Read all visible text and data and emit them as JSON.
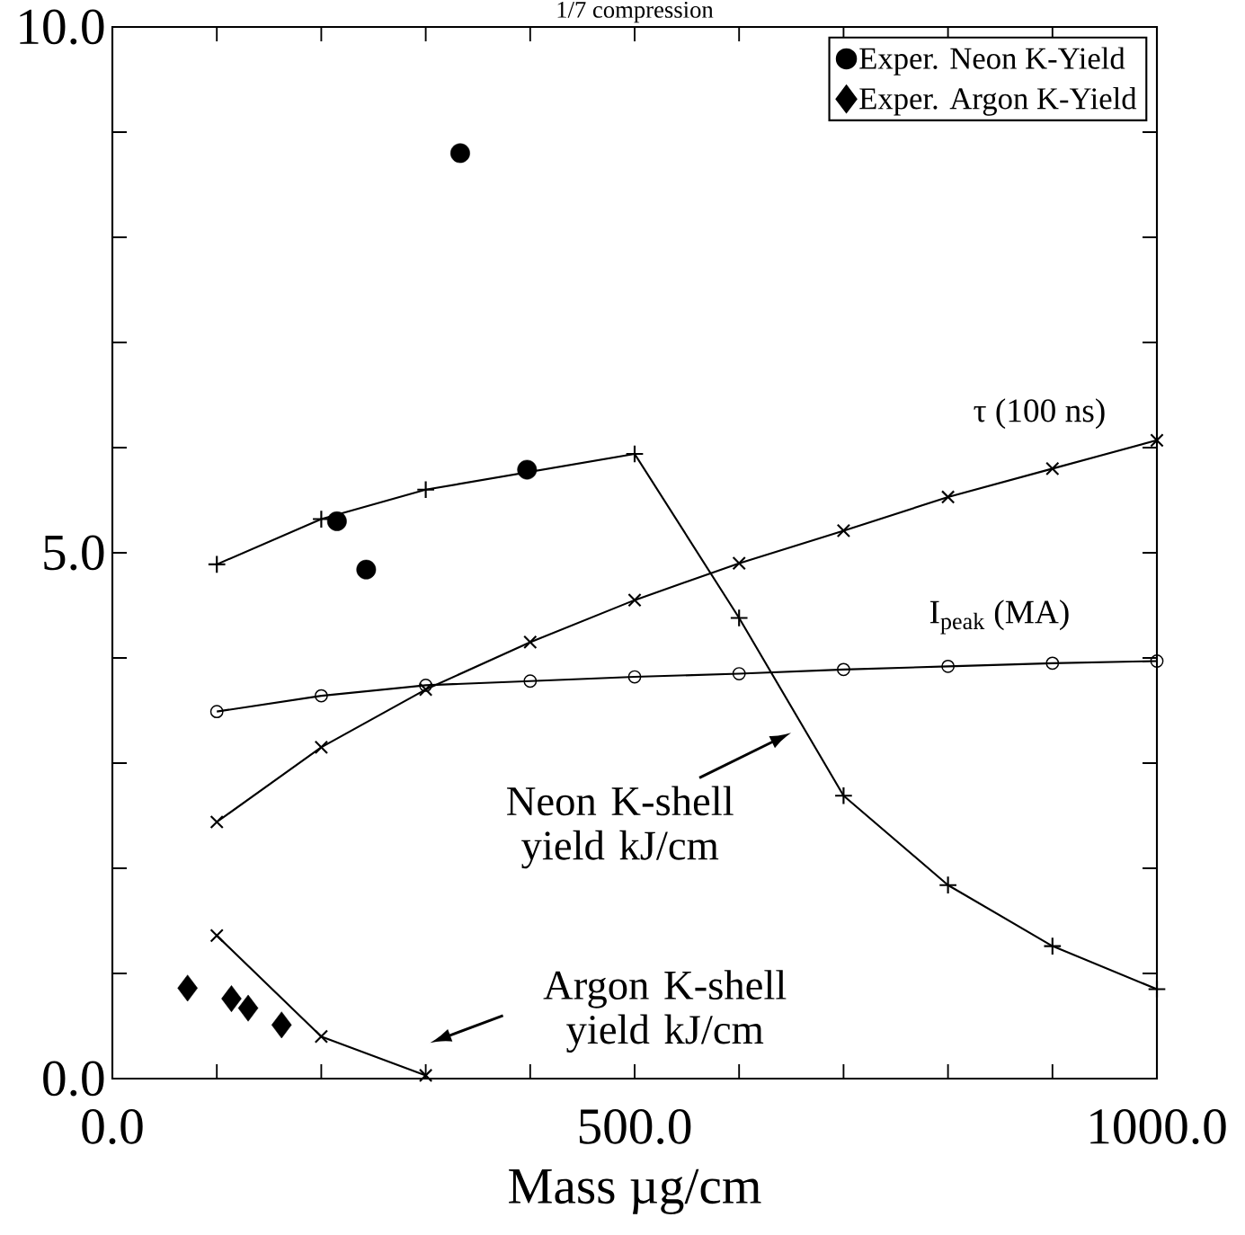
{
  "chart_data": {
    "type": "line",
    "title": "1/7 compression",
    "xlabel": "Mass µg/cm",
    "xlim": [
      0,
      1000
    ],
    "ylim": [
      0,
      10
    ],
    "xticks": [
      {
        "value": 0,
        "label": "0.0"
      },
      {
        "value": 100,
        "label": null
      },
      {
        "value": 200,
        "label": null
      },
      {
        "value": 300,
        "label": null
      },
      {
        "value": 400,
        "label": null
      },
      {
        "value": 500,
        "label": "500.0"
      },
      {
        "value": 600,
        "label": null
      },
      {
        "value": 700,
        "label": null
      },
      {
        "value": 800,
        "label": null
      },
      {
        "value": 900,
        "label": null
      },
      {
        "value": 1000,
        "label": "1000.0"
      }
    ],
    "yticks": [
      {
        "value": 0,
        "label": "0.0"
      },
      {
        "value": 1,
        "label": null
      },
      {
        "value": 2,
        "label": null
      },
      {
        "value": 3,
        "label": null
      },
      {
        "value": 4,
        "label": null
      },
      {
        "value": 5,
        "label": "5.0"
      },
      {
        "value": 6,
        "label": null
      },
      {
        "value": 7,
        "label": null
      },
      {
        "value": 8,
        "label": null
      },
      {
        "value": 9,
        "label": null
      },
      {
        "value": 10,
        "label": "10.0"
      }
    ],
    "legend": "top right",
    "series": [
      {
        "type": "line",
        "marker": "plus",
        "color": "#000000",
        "x": [
          100,
          200,
          300,
          400,
          500,
          600,
          700,
          800,
          900,
          1000
        ],
        "values": [
          4.89,
          5.32,
          5.6,
          null,
          5.94,
          4.38,
          2.69,
          1.84,
          1.26,
          0.85
        ]
      },
      {
        "type": "line",
        "marker": "cross",
        "name": "τ (100 ns)",
        "color": "#000000",
        "x": [
          100,
          200,
          300,
          400,
          500,
          600,
          700,
          800,
          900,
          1000
        ],
        "values": [
          2.44,
          3.15,
          3.7,
          4.15,
          4.55,
          4.9,
          5.21,
          5.53,
          5.8,
          6.07
        ]
      },
      {
        "type": "line",
        "marker": "circle",
        "name": "I$_{peak}$ (MA)",
        "color": "#000000",
        "x": [
          100,
          200,
          300,
          400,
          500,
          600,
          700,
          800,
          900,
          1000
        ],
        "values": [
          3.49,
          3.64,
          3.74,
          3.78,
          3.82,
          3.85,
          3.89,
          3.92,
          3.95,
          3.97
        ]
      },
      {
        "type": "line",
        "marker": "cross",
        "color": "#000000",
        "x": [
          100,
          200,
          300
        ],
        "values": [
          1.36,
          0.4,
          0.03
        ]
      },
      {
        "type": "scatter",
        "marker": "circle",
        "name": "Exper. Neon K-Yield",
        "color": "#000000",
        "x": [
          333,
          215,
          243,
          397
        ],
        "values": [
          8.8,
          5.3,
          4.84,
          5.79
        ]
      },
      {
        "type": "scatter",
        "marker": "diamond",
        "name": "Exper.  Argon K-Yield",
        "color": "#000000",
        "x": [
          72,
          114,
          130,
          162
        ],
        "values": [
          0.86,
          0.76,
          0.67,
          0.51
        ]
      }
    ],
    "annotations": [
      "Neon K-shell yield kJ/cm",
      "Argon K-shell yield kJ/cm"
    ]
  }
}
